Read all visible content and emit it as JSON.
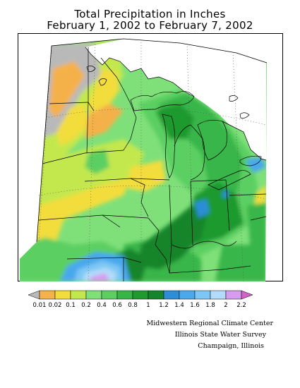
{
  "title": {
    "line1": "Total Precipitation in Inches",
    "line2": "February 1, 2002 to February 7, 2002"
  },
  "colors": {
    "no_data": "#b9b9b9",
    "bins": [
      "#f5b14a",
      "#f2dd3c",
      "#c3e84d",
      "#7fe07a",
      "#5ccf62",
      "#37b648",
      "#1f9a2e",
      "#13852a",
      "#2c8ed6",
      "#4aa8ec",
      "#7cc7f4",
      "#b3dbfa",
      "#d79cf0",
      "#cf63c6"
    ],
    "outline": "#000000"
  },
  "legend": {
    "labels": [
      "0.01",
      "0.02",
      "0.1",
      "0.2",
      "0.4",
      "0.6",
      "0.8",
      "1",
      "1.2",
      "1.4",
      "1.6",
      "1.8",
      "2",
      "2.2"
    ]
  },
  "credits": {
    "line1": "Midwestern Regional Climate Center",
    "line2": "Illinois State Water Survey",
    "line3": "Champaign, Illinois"
  }
}
